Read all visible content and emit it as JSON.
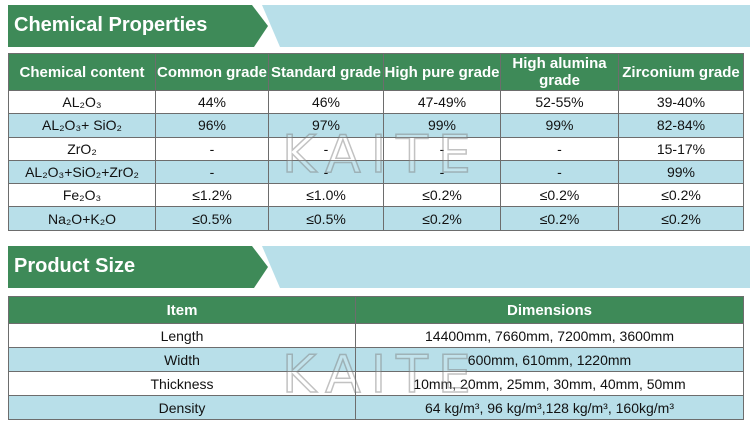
{
  "watermark": "KAITE",
  "sections": [
    {
      "title": "Chemical Properties",
      "table": {
        "header": [
          "Chemical content",
          "Common grade",
          "Standard grade",
          "High pure grade",
          "High alumina grade",
          "Zirconium grade"
        ],
        "rows": [
          [
            "AL₂O₃",
            "44%",
            "46%",
            "47-49%",
            "52-55%",
            "39-40%"
          ],
          [
            "AL₂O₃+ SiO₂",
            "96%",
            "97%",
            "99%",
            "99%",
            "82-84%"
          ],
          [
            "ZrO₂",
            "-",
            "-",
            "-",
            "-",
            "15-17%"
          ],
          [
            "AL₂O₃+SiO₂+ZrO₂",
            "-",
            "-",
            "-",
            "-",
            "99%"
          ],
          [
            "Fe₂O₃",
            "≤1.2%",
            "≤1.0%",
            "≤0.2%",
            "≤0.2%",
            "≤0.2%"
          ],
          [
            "Na₂O+K₂O",
            "≤0.5%",
            "≤0.5%",
            "≤0.2%",
            "≤0.2%",
            "≤0.2%"
          ]
        ]
      }
    },
    {
      "title": "Product Size",
      "table": {
        "header": [
          "Item",
          "Dimensions"
        ],
        "rows": [
          [
            "Length",
            "14400mm, 7660mm, 7200mm, 3600mm"
          ],
          [
            "Width",
            "600mm, 610mm, 1220mm"
          ],
          [
            "Thickness",
            "10mm, 20mm, 25mm, 30mm, 40mm, 50mm"
          ],
          [
            "Density",
            "64 kg/m³, 96 kg/m³,128 kg/m³, 160kg/m³"
          ]
        ]
      }
    }
  ]
}
